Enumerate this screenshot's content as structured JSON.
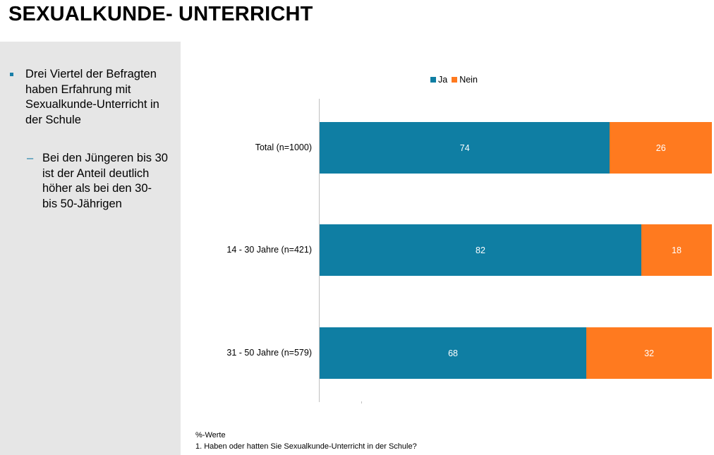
{
  "page": {
    "title": "SEXUALKUNDE- UNTERRICHT",
    "bullet_main": "Drei Viertel der Befragten haben Erfahrung mit Sexualkunde-Unterricht in der Schule",
    "bullet_sub": "Bei den Jüngeren bis 30 ist der Anteil deutlich höher als bei den 30- bis 50-Jährigen",
    "footnote_unit": "%-Werte",
    "footnote_question": "1. Haben oder hatten Sie Sexualkunde-Unterricht in der Schule?"
  },
  "chart_data": {
    "type": "bar",
    "orientation": "horizontal",
    "stacked": true,
    "categories": [
      "Total (n=1000)",
      "14 - 30 Jahre (n=421)",
      "31 - 50 Jahre (n=579)"
    ],
    "series": [
      {
        "name": "Ja",
        "color": "#0f7ea3",
        "values": [
          74,
          82,
          68
        ]
      },
      {
        "name": "Nein",
        "color": "#ff7a1f",
        "values": [
          26,
          18,
          32
        ]
      }
    ],
    "xlim": [
      0,
      100
    ],
    "legend_position": "top",
    "grid": false
  }
}
